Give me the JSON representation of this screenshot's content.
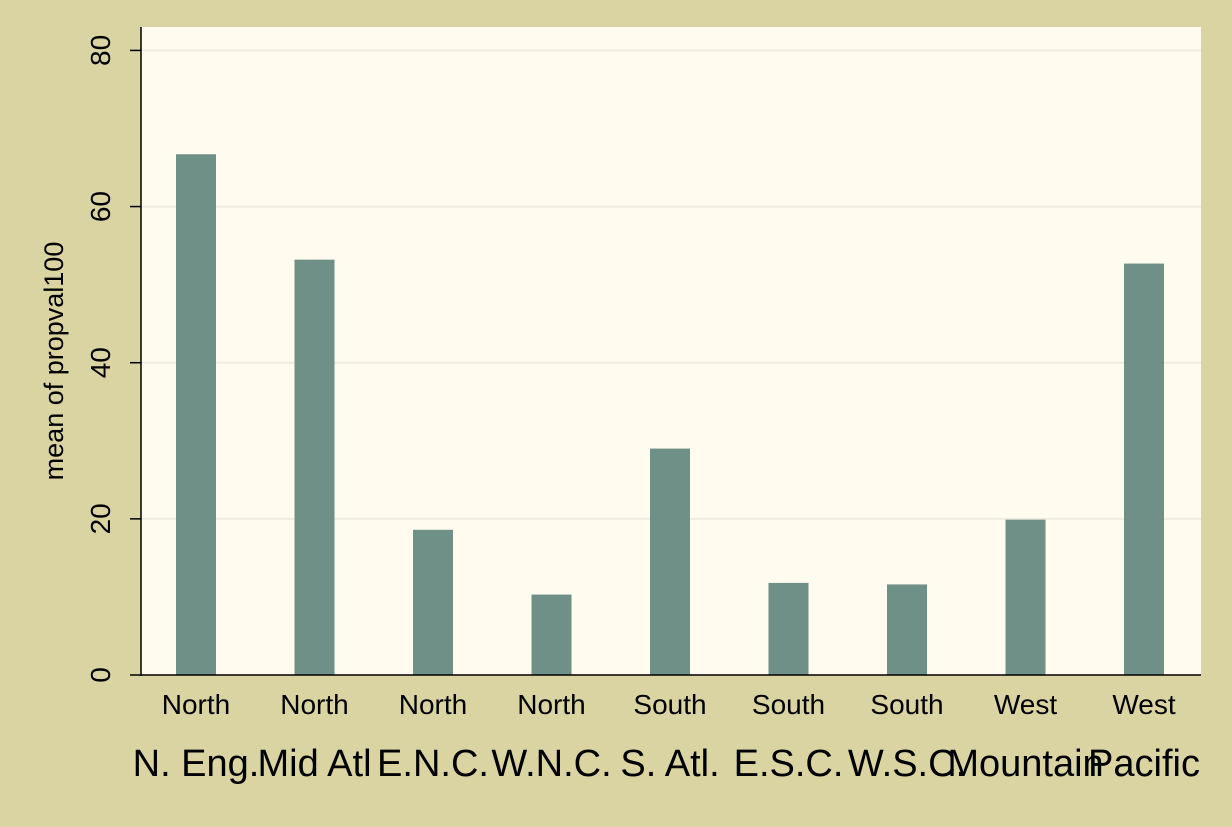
{
  "chart_data": {
    "type": "bar",
    "title": "",
    "ylabel": "mean of propval100",
    "xlabel": "",
    "ylim": [
      0,
      83
    ],
    "yticks": [
      0,
      20,
      40,
      60,
      80
    ],
    "grid": true,
    "categories": [
      {
        "top": "North",
        "bottom": "N. Eng."
      },
      {
        "top": "North",
        "bottom": "Mid Atl"
      },
      {
        "top": "North",
        "bottom": "E.N.C."
      },
      {
        "top": "North",
        "bottom": "W.N.C."
      },
      {
        "top": "South",
        "bottom": "S. Atl."
      },
      {
        "top": "South",
        "bottom": "E.S.C."
      },
      {
        "top": "South",
        "bottom": "W.S.C."
      },
      {
        "top": "West",
        "bottom": "Mountain"
      },
      {
        "top": "West",
        "bottom": "Pacific"
      }
    ],
    "values": [
      66.7,
      53.2,
      18.6,
      10.3,
      29.0,
      11.8,
      11.6,
      19.9,
      52.7
    ]
  },
  "colors": {
    "background": "#d9d4a2",
    "plot_area": "#fffbef",
    "bar": "#6f9086",
    "gridline": "#f0ede0",
    "axis": "#000000"
  }
}
